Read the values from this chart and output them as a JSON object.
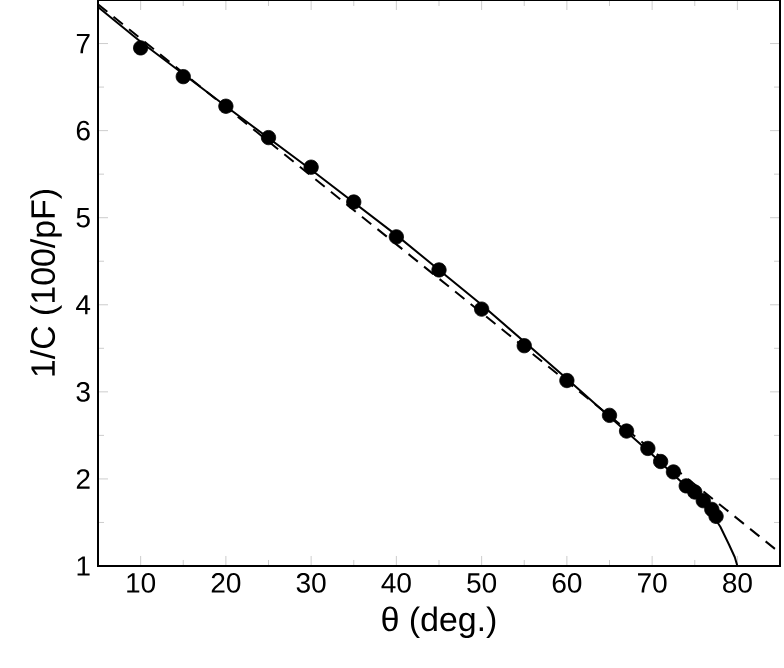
{
  "chart_data": {
    "type": "scatter",
    "xlabel": "θ (deg.)",
    "ylabel": "1/C (100/pF)",
    "xlim": [
      5,
      85
    ],
    "ylim": [
      1,
      7.5
    ],
    "xticks": [
      10,
      20,
      30,
      40,
      50,
      60,
      70,
      80
    ],
    "yticks": [
      1,
      2,
      3,
      4,
      5,
      6,
      7
    ],
    "grid": false,
    "series": [
      {
        "color": "#000000",
        "marker": "circle",
        "x": [
          10,
          15,
          20,
          25,
          30,
          35,
          40,
          45,
          50,
          55,
          60,
          65,
          67,
          69.5,
          71,
          72.5,
          74,
          75,
          76,
          77,
          77.5
        ],
        "values": [
          6.95,
          6.62,
          6.28,
          5.92,
          5.58,
          5.18,
          4.78,
          4.4,
          3.95,
          3.53,
          3.13,
          2.73,
          2.55,
          2.35,
          2.2,
          2.08,
          1.92,
          1.85,
          1.75,
          1.65,
          1.57
        ]
      },
      {
        "type": "line",
        "color": "#000000",
        "line_style": "solid",
        "marker": "none",
        "x": [
          5,
          10,
          20,
          30,
          40,
          50,
          60,
          70,
          75,
          77,
          78,
          79,
          79.7,
          80
        ],
        "values": [
          7.42,
          7.02,
          6.28,
          5.55,
          4.8,
          4.0,
          3.15,
          2.28,
          1.82,
          1.6,
          1.45,
          1.25,
          1.1,
          1.0
        ]
      },
      {
        "type": "line",
        "color": "#000000",
        "line_style": "dashed",
        "marker": "none",
        "x": [
          5,
          85
        ],
        "values": [
          7.45,
          1.15
        ]
      }
    ]
  }
}
